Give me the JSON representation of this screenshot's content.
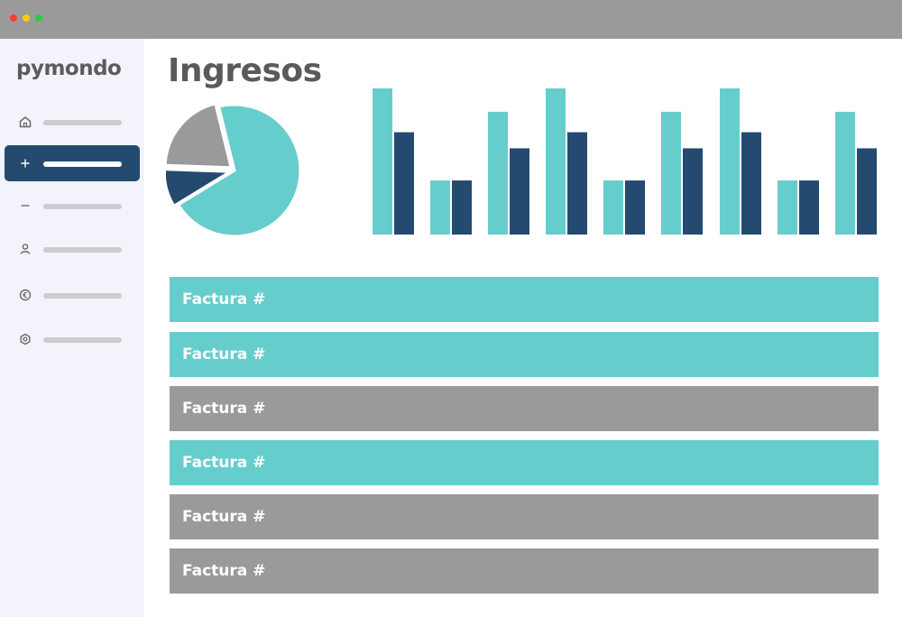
{
  "app": {
    "brand": "pymondo"
  },
  "colors": {
    "teal": "#66cdcd",
    "navy": "#244a70",
    "grey": "#9a9a9a"
  },
  "sidebar": {
    "items": [
      {
        "icon": "home-icon",
        "active": false
      },
      {
        "icon": "plus-icon",
        "active": true
      },
      {
        "icon": "minus-icon",
        "active": false
      },
      {
        "icon": "user-icon",
        "active": false
      },
      {
        "icon": "euro-icon",
        "active": false
      },
      {
        "icon": "settings-icon",
        "active": false
      }
    ]
  },
  "main": {
    "title": "Ingresos",
    "invoices": [
      {
        "label": "Factura #",
        "status": "teal"
      },
      {
        "label": "Factura #",
        "status": "teal"
      },
      {
        "label": "Factura #",
        "status": "grey"
      },
      {
        "label": "Factura #",
        "status": "teal"
      },
      {
        "label": "Factura #",
        "status": "grey"
      },
      {
        "label": "Factura #",
        "status": "grey"
      }
    ]
  },
  "chart_data": [
    {
      "type": "pie",
      "slices": [
        {
          "value": 68,
          "color": "#66cdcd"
        },
        {
          "value": 9,
          "color": "#244a70"
        },
        {
          "value": 20,
          "color": "#9a9a9a"
        }
      ]
    },
    {
      "type": "bar",
      "ylim": [
        0,
        100
      ],
      "series": [
        {
          "color": "#66cdcd",
          "values": [
            100,
            37,
            84,
            100,
            37,
            84,
            100,
            37,
            84
          ]
        },
        {
          "color": "#244a70",
          "values": [
            70,
            37,
            59,
            70,
            37,
            59,
            70,
            37,
            59
          ]
        }
      ]
    }
  ]
}
